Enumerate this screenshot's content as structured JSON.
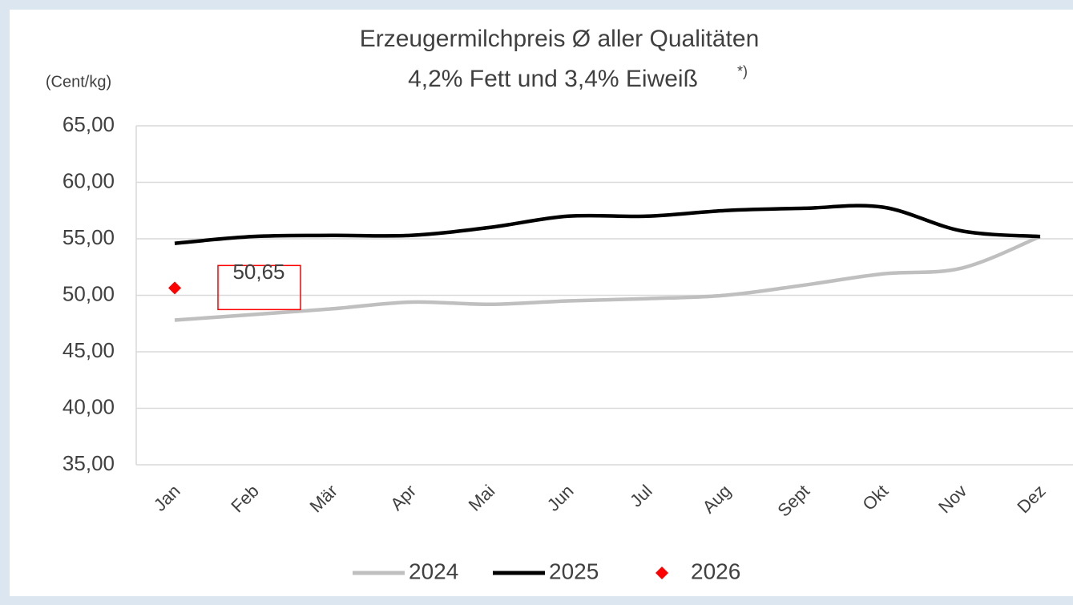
{
  "chart_data": {
    "type": "line",
    "title": [
      "Erzeugermilchpreis Ø aller Qualitäten",
      "4,2% Fett und 3,4% Eiweiß"
    ],
    "title_note": "*)",
    "y_label": "(Cent/kg)",
    "categories": [
      "Jan",
      "Feb",
      "Mär",
      "Apr",
      "Mai",
      "Jun",
      "Jul",
      "Aug",
      "Sept",
      "Okt",
      "Nov",
      "Dez"
    ],
    "series": [
      {
        "name": "2024",
        "color": "#bfbfbf",
        "values": [
          47.8,
          48.3,
          48.8,
          49.4,
          49.2,
          49.5,
          49.7,
          50.0,
          50.9,
          51.9,
          52.4,
          55.2
        ]
      },
      {
        "name": "2025",
        "color": "#000000",
        "values": [
          54.6,
          55.2,
          55.3,
          55.3,
          56.0,
          57.0,
          57.0,
          57.5,
          57.7,
          57.8,
          55.7,
          55.2
        ]
      },
      {
        "name": "2026",
        "color": "#ff0000",
        "marker": "diamond",
        "values": [
          50.65,
          null,
          null,
          null,
          null,
          null,
          null,
          null,
          null,
          null,
          null,
          null
        ],
        "value_labels": [
          "50,65",
          null,
          null,
          null,
          null,
          null,
          null,
          null,
          null,
          null,
          null,
          null
        ]
      }
    ],
    "ylim": [
      35,
      65
    ],
    "yticks": [
      {
        "value": 35,
        "label": "35,00"
      },
      {
        "value": 40,
        "label": "40,00"
      },
      {
        "value": 45,
        "label": "45,00"
      },
      {
        "value": 50,
        "label": "50,00"
      },
      {
        "value": 55,
        "label": "55,00"
      },
      {
        "value": 60,
        "label": "60,00"
      },
      {
        "value": 65,
        "label": "65,00"
      }
    ],
    "grid": true,
    "legend": "bottom"
  }
}
